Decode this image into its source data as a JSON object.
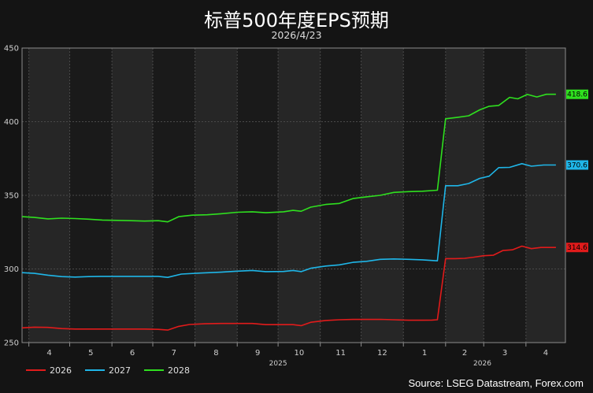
{
  "chart_data": {
    "type": "line",
    "title": "标普500年度EPS预期",
    "subtitle": "2026/4/23",
    "source": "Source: LSEG Datastream, Forex.com",
    "ylim": [
      250,
      450
    ],
    "y_ticks": [
      250,
      300,
      350,
      400,
      450
    ],
    "x_range": [
      "2025-03-27",
      "2026-04-30"
    ],
    "x_month_ticks": [
      {
        "label": "4",
        "date": "2025-04-01"
      },
      {
        "label": "5",
        "date": "2025-05-01"
      },
      {
        "label": "6",
        "date": "2025-06-01"
      },
      {
        "label": "7",
        "date": "2025-07-01"
      },
      {
        "label": "8",
        "date": "2025-08-01"
      },
      {
        "label": "9",
        "date": "2025-09-01"
      },
      {
        "label": "10",
        "date": "2025-10-01"
      },
      {
        "label": "11",
        "date": "2025-11-01"
      },
      {
        "label": "12",
        "date": "2025-12-01"
      },
      {
        "label": "1",
        "date": "2026-01-01"
      },
      {
        "label": "2",
        "date": "2026-02-01"
      },
      {
        "label": "3",
        "date": "2026-03-01"
      },
      {
        "label": "4",
        "date": "2026-04-01"
      }
    ],
    "x_year_labels": [
      {
        "label": "2025",
        "date": "2025-10-01"
      },
      {
        "label": "2026",
        "date": "2026-02-28"
      }
    ],
    "grid": true,
    "legend_position": "bottom-left",
    "series": [
      {
        "name": "2026",
        "color": "#e11b1b",
        "end_label": "314.6",
        "points": [
          [
            "2025-03-27",
            260
          ],
          [
            "2025-04-05",
            260.5
          ],
          [
            "2025-04-15",
            260.3
          ],
          [
            "2025-04-25",
            259.5
          ],
          [
            "2025-05-05",
            259.2
          ],
          [
            "2025-05-15",
            259.2
          ],
          [
            "2025-05-25",
            259.2
          ],
          [
            "2025-06-05",
            259.2
          ],
          [
            "2025-06-15",
            259.2
          ],
          [
            "2025-06-25",
            259.2
          ],
          [
            "2025-07-05",
            259
          ],
          [
            "2025-07-12",
            258.5
          ],
          [
            "2025-07-20",
            261
          ],
          [
            "2025-07-28",
            262.3
          ],
          [
            "2025-08-08",
            262.8
          ],
          [
            "2025-08-20",
            263
          ],
          [
            "2025-09-01",
            263
          ],
          [
            "2025-09-12",
            263
          ],
          [
            "2025-09-22",
            262.2
          ],
          [
            "2025-10-05",
            262.2
          ],
          [
            "2025-10-12",
            262.2
          ],
          [
            "2025-10-18",
            261.5
          ],
          [
            "2025-10-25",
            263.8
          ],
          [
            "2025-11-05",
            265
          ],
          [
            "2025-11-15",
            265.5
          ],
          [
            "2025-11-25",
            265.7
          ],
          [
            "2025-12-05",
            265.7
          ],
          [
            "2025-12-15",
            265.8
          ],
          [
            "2025-12-25",
            265.5
          ],
          [
            "2026-01-05",
            265.2
          ],
          [
            "2026-01-15",
            265.2
          ],
          [
            "2026-01-22",
            265.3
          ],
          [
            "2026-01-26",
            265.5
          ],
          [
            "2026-02-01",
            307
          ],
          [
            "2026-02-08",
            307
          ],
          [
            "2026-02-15",
            307.2
          ],
          [
            "2026-02-22",
            308
          ],
          [
            "2026-03-01",
            309
          ],
          [
            "2026-03-08",
            309.3
          ],
          [
            "2026-03-15",
            312.5
          ],
          [
            "2026-03-22",
            313
          ],
          [
            "2026-03-29",
            315.5
          ],
          [
            "2026-04-05",
            313.8
          ],
          [
            "2026-04-12",
            314.6
          ],
          [
            "2026-04-23",
            314.6
          ]
        ]
      },
      {
        "name": "2027",
        "color": "#1fb6e8",
        "end_label": "370.6",
        "points": [
          [
            "2025-03-27",
            297.5
          ],
          [
            "2025-04-05",
            297
          ],
          [
            "2025-04-15",
            295.8
          ],
          [
            "2025-04-25",
            294.8
          ],
          [
            "2025-05-05",
            294.5
          ],
          [
            "2025-05-15",
            294.8
          ],
          [
            "2025-05-25",
            295
          ],
          [
            "2025-06-05",
            295
          ],
          [
            "2025-06-20",
            295
          ],
          [
            "2025-07-05",
            295
          ],
          [
            "2025-07-12",
            294.3
          ],
          [
            "2025-07-22",
            296.5
          ],
          [
            "2025-08-05",
            297.2
          ],
          [
            "2025-08-20",
            297.8
          ],
          [
            "2025-09-01",
            298.5
          ],
          [
            "2025-09-12",
            299
          ],
          [
            "2025-09-22",
            298.2
          ],
          [
            "2025-10-05",
            298.3
          ],
          [
            "2025-10-12",
            299
          ],
          [
            "2025-10-18",
            298.2
          ],
          [
            "2025-10-25",
            300.5
          ],
          [
            "2025-11-05",
            302
          ],
          [
            "2025-11-15",
            302.8
          ],
          [
            "2025-11-25",
            304.5
          ],
          [
            "2025-12-05",
            305.2
          ],
          [
            "2025-12-15",
            306.5
          ],
          [
            "2025-12-25",
            306.8
          ],
          [
            "2026-01-05",
            306.5
          ],
          [
            "2026-01-15",
            306.2
          ],
          [
            "2026-01-26",
            305.5
          ],
          [
            "2026-02-01",
            356.5
          ],
          [
            "2026-02-10",
            356.5
          ],
          [
            "2026-02-18",
            358
          ],
          [
            "2026-02-26",
            361.5
          ],
          [
            "2026-03-05",
            363
          ],
          [
            "2026-03-12",
            368.8
          ],
          [
            "2026-03-20",
            369
          ],
          [
            "2026-03-29",
            371.5
          ],
          [
            "2026-04-05",
            369.8
          ],
          [
            "2026-04-14",
            370.6
          ],
          [
            "2026-04-23",
            370.6
          ]
        ]
      },
      {
        "name": "2028",
        "color": "#2fe01f",
        "end_label": "418.6",
        "points": [
          [
            "2025-03-27",
            335.5
          ],
          [
            "2025-04-05",
            335
          ],
          [
            "2025-04-15",
            334
          ],
          [
            "2025-04-25",
            334.5
          ],
          [
            "2025-05-05",
            334.2
          ],
          [
            "2025-05-15",
            333.8
          ],
          [
            "2025-05-25",
            333.2
          ],
          [
            "2025-06-05",
            333
          ],
          [
            "2025-06-15",
            332.8
          ],
          [
            "2025-06-25",
            332.5
          ],
          [
            "2025-07-05",
            332.8
          ],
          [
            "2025-07-12",
            332
          ],
          [
            "2025-07-20",
            335.5
          ],
          [
            "2025-07-30",
            336.5
          ],
          [
            "2025-08-10",
            336.8
          ],
          [
            "2025-08-20",
            337.5
          ],
          [
            "2025-09-01",
            338.5
          ],
          [
            "2025-09-12",
            338.8
          ],
          [
            "2025-09-22",
            338.2
          ],
          [
            "2025-10-05",
            338.8
          ],
          [
            "2025-10-12",
            339.8
          ],
          [
            "2025-10-18",
            339.2
          ],
          [
            "2025-10-25",
            342
          ],
          [
            "2025-11-05",
            343.8
          ],
          [
            "2025-11-15",
            344.5
          ],
          [
            "2025-11-25",
            347.8
          ],
          [
            "2025-12-05",
            349
          ],
          [
            "2025-12-15",
            350
          ],
          [
            "2025-12-25",
            352
          ],
          [
            "2026-01-05",
            352.5
          ],
          [
            "2026-01-15",
            352.8
          ],
          [
            "2026-01-26",
            353.5
          ],
          [
            "2026-02-01",
            402
          ],
          [
            "2026-02-10",
            403
          ],
          [
            "2026-02-18",
            404
          ],
          [
            "2026-02-26",
            408
          ],
          [
            "2026-03-05",
            410.5
          ],
          [
            "2026-03-12",
            411
          ],
          [
            "2026-03-20",
            416.5
          ],
          [
            "2026-03-26",
            415.5
          ],
          [
            "2026-04-02",
            418.5
          ],
          [
            "2026-04-09",
            416.8
          ],
          [
            "2026-04-16",
            418.6
          ],
          [
            "2026-04-23",
            418.6
          ]
        ]
      }
    ]
  }
}
